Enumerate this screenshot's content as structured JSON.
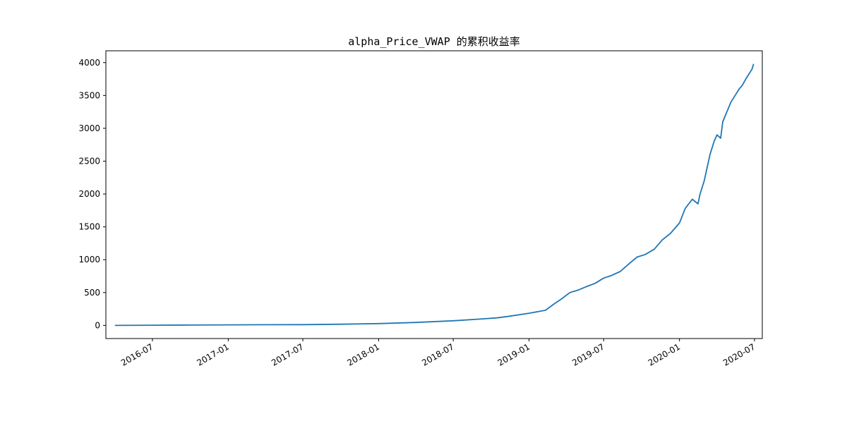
{
  "chart_data": {
    "type": "line",
    "title": "alpha_Price_VWAP 的累积收益率",
    "xlabel": "",
    "ylabel": "",
    "ylim": [
      -200,
      4180
    ],
    "yticks": [
      0,
      500,
      1000,
      1500,
      2000,
      2500,
      3000,
      3500,
      4000
    ],
    "xlim": [
      "2016-03-10",
      "2020-07-20"
    ],
    "xticks": [
      "2016-07",
      "2017-01",
      "2017-07",
      "2018-01",
      "2018-07",
      "2019-01",
      "2019-07",
      "2020-01",
      "2020-07"
    ],
    "grid": false,
    "colors": {
      "line": "#1f77b4"
    },
    "series": [
      {
        "x": [
          "2016-04-01",
          "2016-07-01",
          "2016-10-01",
          "2017-01-01",
          "2017-04-01",
          "2017-07-01",
          "2017-10-01",
          "2018-01-01",
          "2018-04-01",
          "2018-07-01",
          "2018-09-01",
          "2018-10-15",
          "2018-11-15",
          "2019-01-01",
          "2019-02-10",
          "2019-03-01",
          "2019-03-20",
          "2019-04-10",
          "2019-05-01",
          "2019-05-20",
          "2019-06-10",
          "2019-07-01",
          "2019-07-20",
          "2019-08-10",
          "2019-09-01",
          "2019-09-20",
          "2019-10-10",
          "2019-11-01",
          "2019-11-20",
          "2019-12-10",
          "2020-01-01",
          "2020-01-15",
          "2020-02-01",
          "2020-02-15",
          "2020-02-20",
          "2020-03-01",
          "2020-03-15",
          "2020-03-25",
          "2020-04-01",
          "2020-04-10",
          "2020-04-15",
          "2020-04-25",
          "2020-05-05",
          "2020-05-15",
          "2020-05-25",
          "2020-06-01",
          "2020-06-10",
          "2020-06-15",
          "2020-06-20",
          "2020-06-25",
          "2020-06-29"
        ],
        "values": [
          0,
          3,
          5,
          8,
          10,
          12,
          18,
          28,
          45,
          70,
          95,
          115,
          140,
          185,
          230,
          320,
          400,
          500,
          540,
          590,
          640,
          720,
          760,
          820,
          940,
          1040,
          1080,
          1160,
          1300,
          1400,
          1560,
          1780,
          1920,
          1850,
          2000,
          2200,
          2600,
          2800,
          2900,
          2850,
          3100,
          3250,
          3400,
          3500,
          3600,
          3650,
          3750,
          3800,
          3850,
          3900,
          3980
        ]
      }
    ]
  }
}
